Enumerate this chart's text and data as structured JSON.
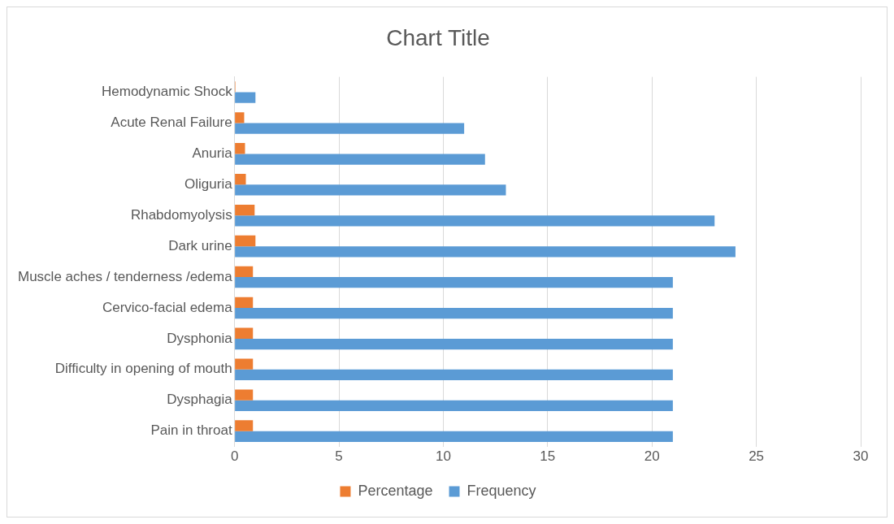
{
  "chart_data": {
    "type": "bar",
    "title": "Chart Title",
    "orientation": "horizontal",
    "categories": [
      "Hemodynamic Shock",
      "Acute Renal Failure",
      "Anuria",
      "Oliguria",
      "Rhabdomyolysis",
      "Dark urine",
      "Muscle aches / tenderness /edema",
      "Cervico-facial edema",
      "Dysphonia",
      "Difficulty in opening of mouth",
      "Dysphagia",
      "Pain in throat"
    ],
    "series": [
      {
        "name": "Percentage",
        "color": "#ed7d31",
        "values": [
          0.04,
          0.46,
          0.5,
          0.54,
          0.96,
          1,
          0.88,
          0.88,
          0.88,
          0.88,
          0.88,
          0.88
        ]
      },
      {
        "name": "Frequency",
        "color": "#5b9bd5",
        "values": [
          1,
          11,
          12,
          13,
          23,
          24,
          21,
          21,
          21,
          21,
          21,
          21
        ]
      }
    ],
    "xlim": [
      0,
      30
    ],
    "xticks": [
      0,
      5,
      10,
      15,
      20,
      25,
      30
    ],
    "grid": "x",
    "legend": "bottom"
  }
}
